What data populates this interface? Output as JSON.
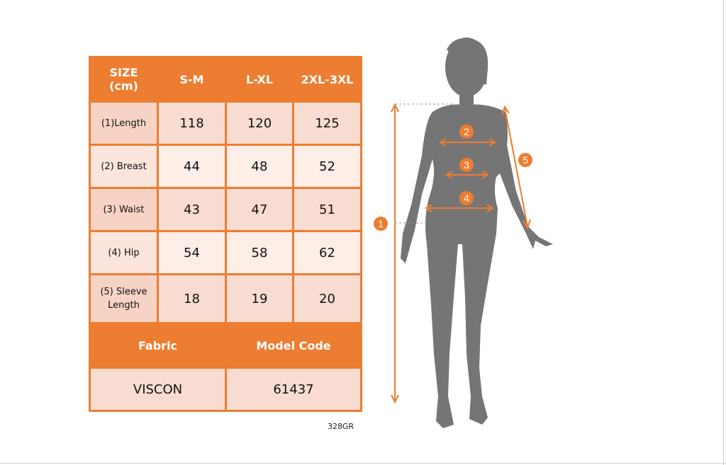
{
  "table": {
    "header": [
      "SIZE (cm)",
      "S-M",
      "L-XL",
      "2XL-3XL"
    ],
    "header_line1": "SIZE",
    "header_line2": "(cm)",
    "rows": [
      {
        "label": "(1)Length",
        "values": [
          "118",
          "120",
          "125"
        ]
      },
      {
        "label": "(2) Breast",
        "values": [
          "44",
          "48",
          "52"
        ]
      },
      {
        "label": "(3) Waist",
        "values": [
          "43",
          "47",
          "51"
        ]
      },
      {
        "label": "(4) Hip",
        "values": [
          "54",
          "58",
          "62"
        ]
      },
      {
        "label": "(5) Sleeve Length",
        "values": [
          "18",
          "19",
          "20"
        ]
      }
    ],
    "footer_headers": [
      "Fabric",
      "Model Code"
    ],
    "footer_values": [
      "VISCON",
      "61437"
    ]
  },
  "product_code": "328GR",
  "figure": {
    "markers": [
      "1",
      "2",
      "3",
      "4",
      "5"
    ],
    "accent_color": "#ed7d31",
    "silhouette_color": "#757575"
  }
}
